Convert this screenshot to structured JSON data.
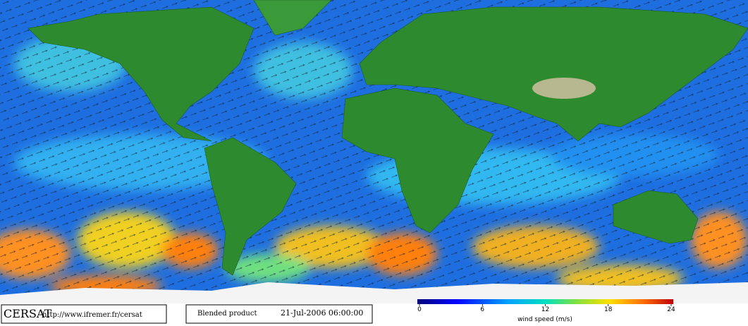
{
  "footer": {
    "logo": "CERSAT",
    "url": "http://www.ifremer.fr/cersat",
    "product": "Blended product",
    "date": "21-Jul-2006 06:00:00"
  },
  "colorbar": {
    "label": "wind speed (m/s)",
    "lim": [
      0,
      24
    ],
    "ticks": [
      0,
      6,
      12,
      18,
      24
    ]
  }
}
